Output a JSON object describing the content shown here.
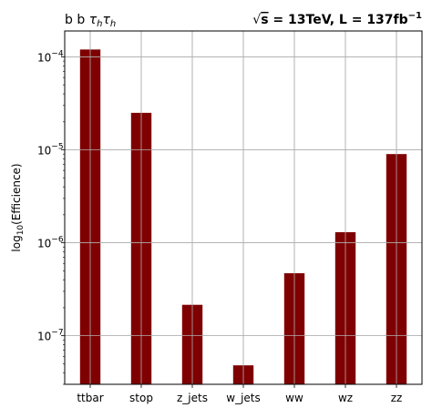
{
  "chart_data": {
    "type": "bar",
    "title_left": "b b τhτh",
    "title_right": "√s = 13TeV, L = 137fb⁻¹",
    "ylabel": "log10(Efficience)",
    "xlabel": "",
    "yscale": "log",
    "ylim": [
      3e-08,
      0.00019
    ],
    "grid": true,
    "categories": [
      "ttbar",
      "stop",
      "z_jets",
      "w_jets",
      "ww",
      "wz",
      "zz"
    ],
    "values": [
      0.00012,
      2.5e-05,
      2.15e-07,
      4.8e-08,
      4.7e-07,
      1.3e-06,
      9e-06
    ],
    "bar_color": "#7f0000",
    "grid_color": "#b0b0b0",
    "y_ticks": [
      {
        "value": 1e-07,
        "mant": "10",
        "exp": "−7"
      },
      {
        "value": 1e-06,
        "mant": "10",
        "exp": "−6"
      },
      {
        "value": 1e-05,
        "mant": "10",
        "exp": "−5"
      },
      {
        "value": 0.0001,
        "mant": "10",
        "exp": "−4"
      }
    ]
  }
}
